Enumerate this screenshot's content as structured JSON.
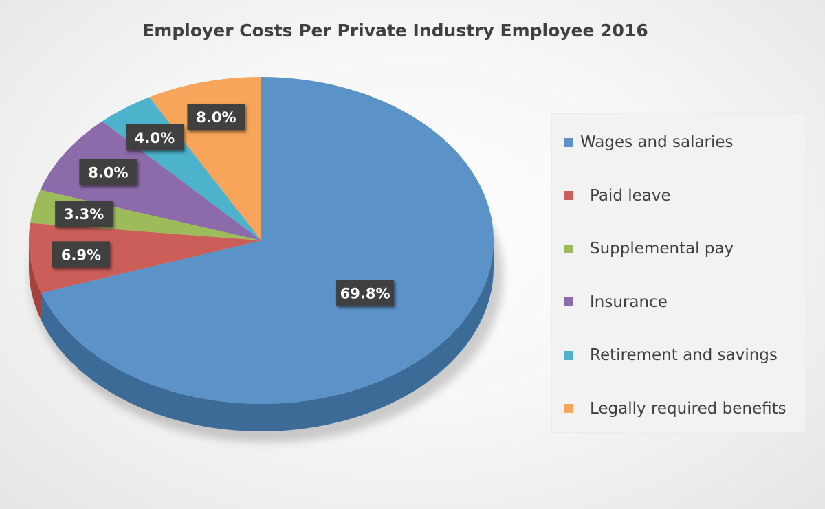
{
  "chart_data": {
    "type": "pie",
    "title": "Employer Costs Per Private Industry Employee 2016",
    "categories": [
      "Wages and salaries",
      "Paid leave",
      "Supplemental pay",
      "Insurance",
      "Retirement and savings",
      "Legally required benefits"
    ],
    "values": [
      69.8,
      6.9,
      3.3,
      8.0,
      4.0,
      8.0
    ],
    "data_labels": [
      "69.8%",
      "6.9%",
      "3.3%",
      "8.0%",
      "4.0%",
      "8.0%"
    ],
    "colors": [
      "#5b93c9",
      "#cc5e5a",
      "#9dbb5a",
      "#8d6bab",
      "#4db3cc",
      "#f6a55a"
    ],
    "side_colors": [
      "#3d6b97",
      "#a3423f",
      "#7a9442",
      "#6a4e85",
      "#3790a6",
      "#cc8440"
    ],
    "legend_position": "right",
    "style": "3d"
  }
}
